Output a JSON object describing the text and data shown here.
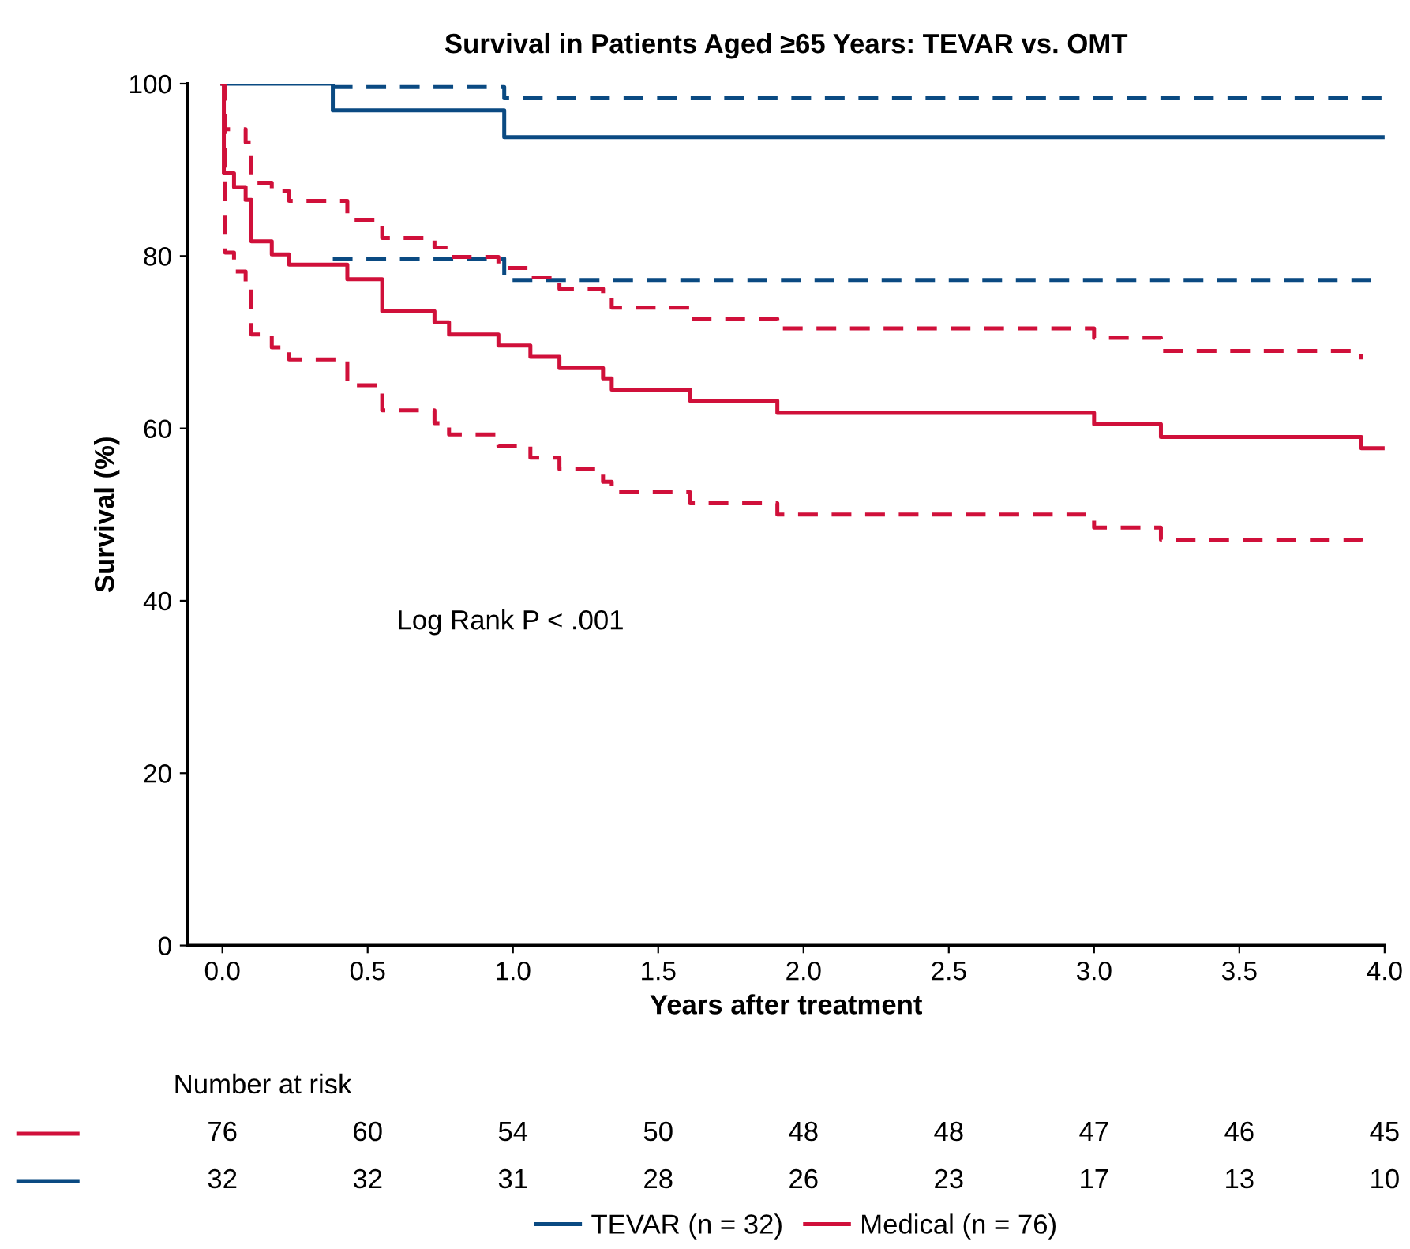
{
  "chart_data": {
    "type": "step",
    "title": "Survival in Patients Aged ≥65 Years: TEVAR vs. OMT",
    "xlabel": "Years after treatment",
    "ylabel": "Survival (%)",
    "xlim": [
      -0.12,
      4.0
    ],
    "ylim": [
      0,
      100
    ],
    "xticks": [
      {
        "value": 0,
        "label": "0.0"
      },
      {
        "value": 0.5,
        "label": "0.5"
      },
      {
        "value": 1,
        "label": "1.0"
      },
      {
        "value": 1.5,
        "label": "1.5"
      },
      {
        "value": 2,
        "label": "2.0"
      },
      {
        "value": 2.5,
        "label": "2.5"
      },
      {
        "value": 3,
        "label": "3.0"
      },
      {
        "value": 3.5,
        "label": "3.5"
      },
      {
        "value": 4,
        "label": "4.0"
      }
    ],
    "yticks": [
      0,
      20,
      40,
      60,
      80,
      100
    ],
    "grid": false,
    "legend": "bottom",
    "series": [
      {
        "name": "TEVAR (n = 32)",
        "color": "#0a4a82",
        "line_style": "solid",
        "x": [
          0,
          0.38,
          0.97,
          4.0
        ],
        "values": [
          100,
          96.9,
          93.8,
          93.8
        ]
      },
      {
        "color": "#0a4a82",
        "line_style": "dashed",
        "x": [
          0.38,
          0.97,
          4.0
        ],
        "values": [
          99.6,
          98.3,
          98.3
        ]
      },
      {
        "color": "#0a4a82",
        "line_style": "dashed",
        "x": [
          0.38,
          0.97,
          4.0
        ],
        "values": [
          79.7,
          77.2,
          77.2
        ]
      },
      {
        "name": "Medical (n = 76)",
        "color": "#d0103a",
        "line_style": "solid",
        "x": [
          0,
          0.005,
          0.04,
          0.08,
          0.1,
          0.17,
          0.23,
          0.43,
          0.55,
          0.73,
          0.78,
          0.95,
          1.06,
          1.16,
          1.31,
          1.34,
          1.61,
          1.91,
          3.0,
          3.23,
          3.92,
          4.0
        ],
        "values": [
          100,
          89.6,
          88.0,
          86.5,
          81.7,
          80.2,
          79.0,
          77.3,
          73.6,
          72.3,
          70.9,
          69.6,
          68.3,
          67.0,
          65.8,
          64.5,
          63.2,
          61.8,
          60.5,
          59.0,
          57.7,
          57.7
        ]
      },
      {
        "color": "#d0103a",
        "line_style": "dashed",
        "x": [
          0,
          0.01,
          0.08,
          0.1,
          0.17,
          0.23,
          0.43,
          0.55,
          0.73,
          0.78,
          0.95,
          1.06,
          1.16,
          1.31,
          1.34,
          1.61,
          1.91,
          3.0,
          3.23,
          3.92
        ],
        "values": [
          100,
          94.7,
          93.2,
          88.5,
          87.5,
          86.4,
          84.2,
          82.1,
          81.0,
          79.9,
          78.6,
          77.5,
          76.2,
          75.3,
          74.0,
          72.7,
          71.6,
          70.5,
          69.0,
          68.0
        ]
      },
      {
        "color": "#d0103a",
        "line_style": "dashed",
        "x": [
          0,
          0.01,
          0.04,
          0.08,
          0.1,
          0.17,
          0.23,
          0.43,
          0.55,
          0.73,
          0.78,
          0.95,
          1.06,
          1.16,
          1.31,
          1.34,
          1.61,
          1.91,
          3.0,
          3.23,
          3.92
        ],
        "values": [
          100,
          80.4,
          78.2,
          76.7,
          70.9,
          69.4,
          68.0,
          65.0,
          62.1,
          60.6,
          59.3,
          57.9,
          56.6,
          55.3,
          53.8,
          52.6,
          51.3,
          50.0,
          48.5,
          47.1,
          46.2
        ]
      }
    ],
    "annotations": [
      "Log Rank P < .001",
      "Number at risk",
      "76",
      "60",
      "54",
      "50",
      "48",
      "48",
      "47",
      "46",
      "45",
      "32",
      "32",
      "31",
      "28",
      "26",
      "23",
      "17",
      "13",
      "10"
    ]
  }
}
